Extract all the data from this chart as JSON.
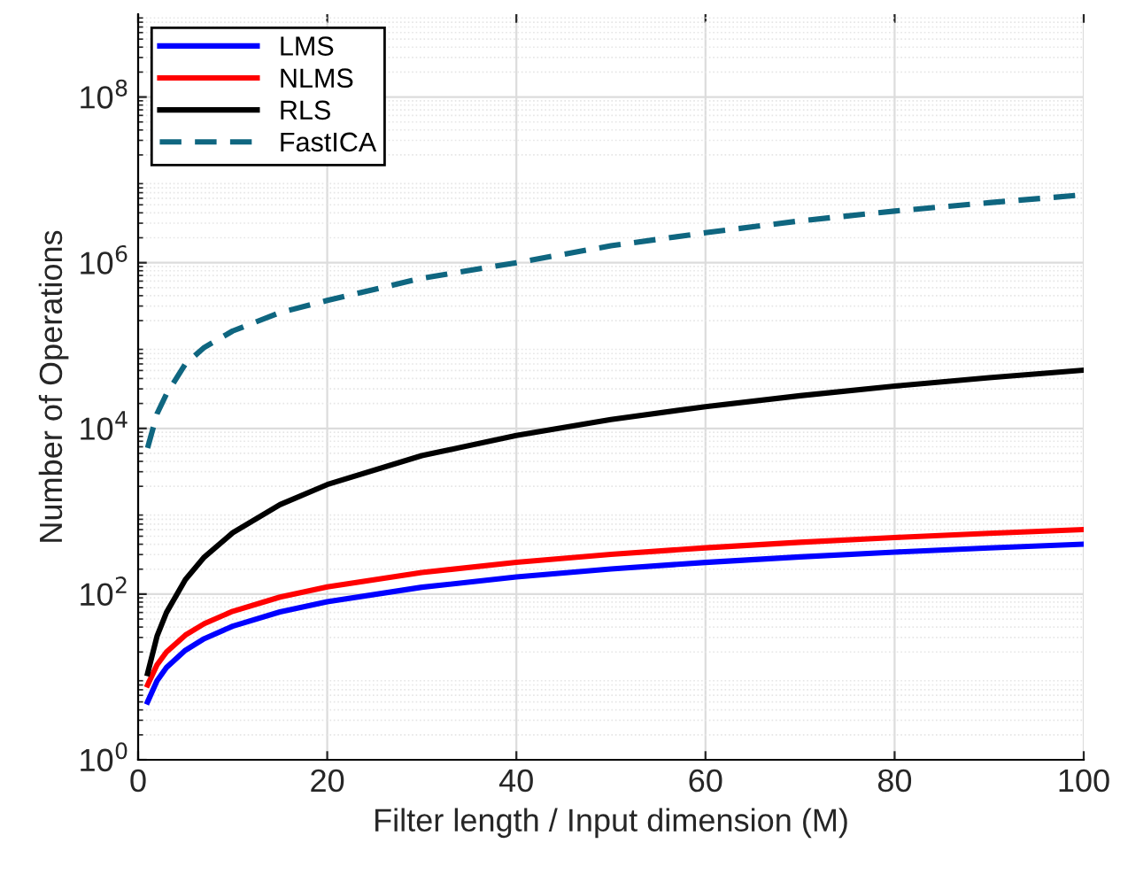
{
  "chart_data": {
    "type": "line",
    "xlabel": "Filter length / Input dimension (M)",
    "ylabel": "Number of Operations",
    "x": [
      1,
      2,
      3,
      5,
      7,
      10,
      15,
      20,
      30,
      40,
      50,
      60,
      70,
      80,
      90,
      100
    ],
    "series": [
      {
        "name": "LMS",
        "color": "#0000ff",
        "values": [
          5,
          9,
          13,
          21,
          29,
          41,
          61,
          81,
          121,
          161,
          201,
          241,
          281,
          321,
          361,
          401
        ]
      },
      {
        "name": "NLMS",
        "color": "#ff0000",
        "values": [
          8,
          14,
          20,
          32,
          44,
          62,
          92,
          122,
          182,
          242,
          302,
          362,
          422,
          482,
          542,
          602
        ]
      },
      {
        "name": "RLS",
        "color": "#000000",
        "values": [
          11,
          31,
          60,
          150,
          280,
          550,
          1200,
          2100,
          4700,
          8200,
          12800,
          18300,
          24800,
          32400,
          41000,
          50500
        ]
      },
      {
        "name": "FastICA",
        "color": "#0f6680",
        "line_style": "dashed",
        "values": [
          5800,
          15000,
          26000,
          60000,
          95000,
          150000,
          250000,
          350000,
          650000,
          1000000,
          1600000,
          2300000,
          3200000,
          4200000,
          5300000,
          6600000
        ]
      }
    ],
    "log": "y",
    "xlim": [
      0,
      100
    ],
    "xticks": [
      0,
      20,
      40,
      60,
      80,
      100
    ],
    "ylim": [
      1,
      1000000000
    ],
    "yticks": [
      {
        "value": 1,
        "label": "10$^{0}$"
      },
      {
        "value": 100,
        "label": "10$^{2}$"
      },
      {
        "value": 10000,
        "label": "10$^{4}$"
      },
      {
        "value": 1000000,
        "label": "10$^{6}$"
      },
      {
        "value": 100000000,
        "label": "10$^{8}$"
      }
    ],
    "grid": true,
    "legend": "top left",
    "line_style": "solid",
    "marker": "none"
  }
}
